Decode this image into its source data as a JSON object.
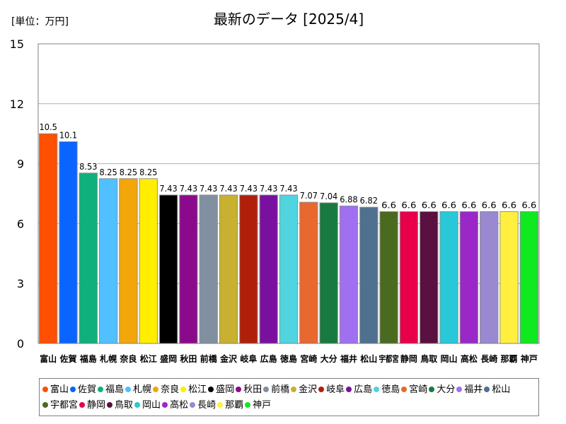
{
  "unit_label": "[単位：万円]",
  "chart_data": {
    "type": "bar",
    "title": "最新のデータ [2025/4]",
    "categories": [
      "富山",
      "佐賀",
      "福島",
      "札幌",
      "奈良",
      "松江",
      "盛岡",
      "秋田",
      "前橋",
      "金沢",
      "岐阜",
      "広島",
      "徳島",
      "宮崎",
      "大分",
      "福井",
      "松山",
      "宇都宮",
      "静岡",
      "鳥取",
      "岡山",
      "高松",
      "長崎",
      "那覇",
      "神戸"
    ],
    "values": [
      10.5,
      10.1,
      8.53,
      8.25,
      8.25,
      8.25,
      7.43,
      7.43,
      7.43,
      7.43,
      7.43,
      7.43,
      7.43,
      7.07,
      7.04,
      6.88,
      6.82,
      6.6,
      6.6,
      6.6,
      6.6,
      6.6,
      6.6,
      6.6,
      6.6
    ],
    "data_labels": [
      "10.5",
      "10.1",
      "8.53",
      "8.25",
      "8.25",
      "8.25",
      "7.43",
      "7.43",
      "7.43",
      "7.43",
      "7.43",
      "7.43",
      "7.43",
      "7.07",
      "7.04",
      "6.88",
      "6.82",
      "6.6",
      "6.6",
      "6.6",
      "6.6",
      "6.6",
      "6.6",
      "6.6",
      "6.6"
    ],
    "colors": [
      "#ff4f00",
      "#0a64ff",
      "#10b07c",
      "#50c0ff",
      "#f2a60a",
      "#ffee00",
      "#000000",
      "#8b0a8b",
      "#8090a0",
      "#c8b030",
      "#b01f0a",
      "#7a10a0",
      "#50d4e0",
      "#e86830",
      "#187a40",
      "#a070f0",
      "#507090",
      "#4a6a20",
      "#e8004a",
      "#5a1040",
      "#28c8d8",
      "#9a28c8",
      "#9a88d0",
      "#fff040",
      "#10e820"
    ],
    "ylim": [
      0,
      15
    ],
    "yticks": [
      "0",
      "3",
      "6",
      "9",
      "12",
      "15"
    ],
    "grid": true,
    "legend_position": "bottom"
  }
}
